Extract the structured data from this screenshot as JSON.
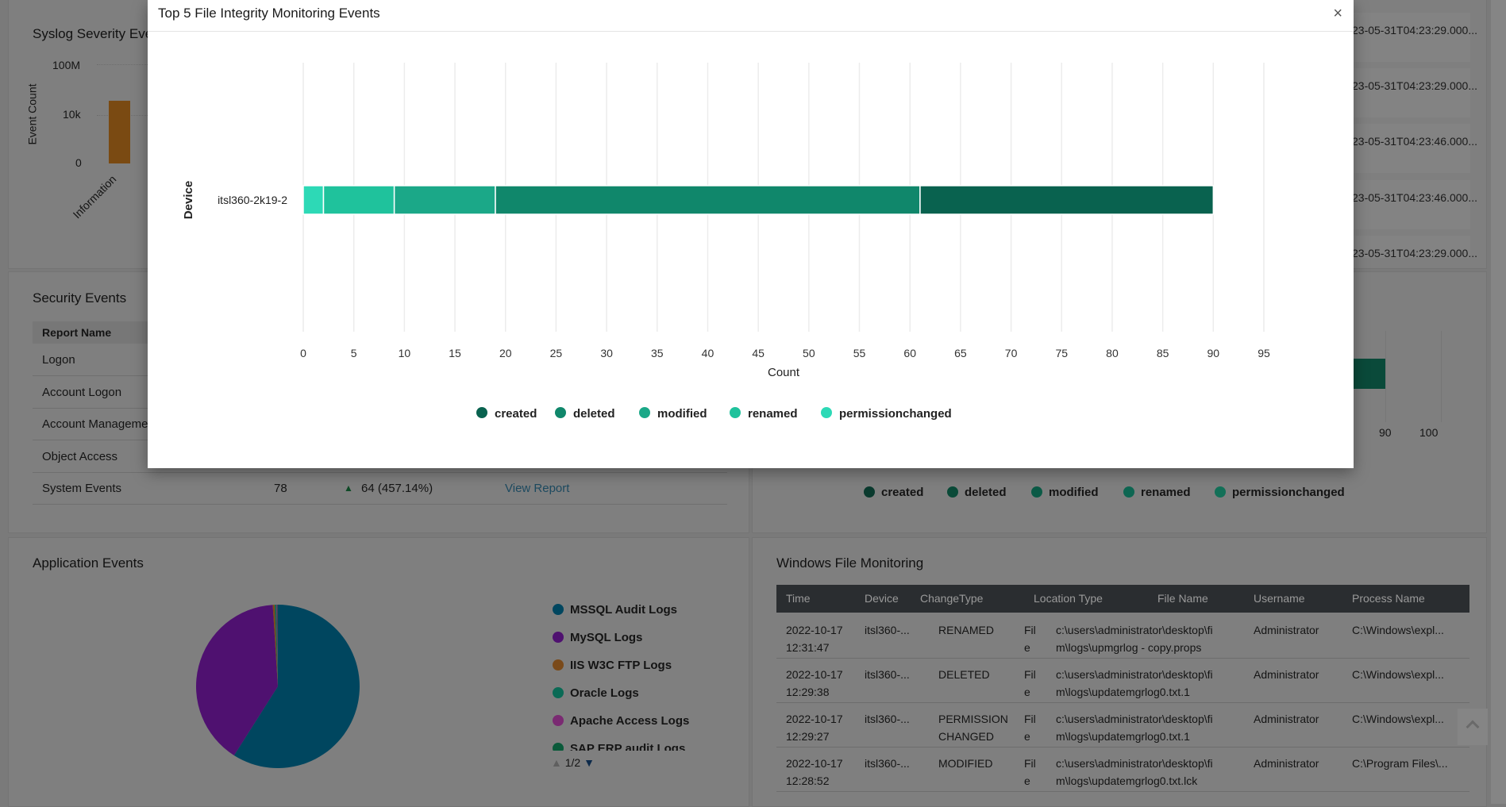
{
  "syslog": {
    "title": "Syslog Severity Eve",
    "y_axis_label": "Event Count",
    "y_ticks": [
      "100M",
      "10k",
      "0"
    ],
    "x_label": "Information",
    "bar_color": "#7a4a12"
  },
  "right_top": {
    "timestamps": [
      "23-05-31T04:23:29.000...",
      "23-05-31T04:23:29.000...",
      "23-05-31T04:23:46.000...",
      "23-05-31T04:23:46.000...",
      "23-05-31T04:23:29.000..."
    ]
  },
  "security": {
    "title": "Security Events",
    "header": "Report Name",
    "rows": [
      "Logon",
      "Account Logon",
      "Account Manageme",
      "Object Access",
      "System Events"
    ],
    "system_events": {
      "count": "78",
      "change": "64 (457.14%)",
      "trend": "up",
      "link": "View Report"
    }
  },
  "right_mid": {
    "ticks": [
      "90",
      "100"
    ],
    "legend": [
      "created",
      "deleted",
      "modified",
      "renamed",
      "permissionchanged"
    ]
  },
  "application": {
    "title": "Application Events",
    "legend": [
      {
        "label": "MSSQL Audit Logs",
        "color": "#00465f"
      },
      {
        "label": "MySQL Logs",
        "color": "#4f1170"
      },
      {
        "label": "IIS W3C FTP Logs",
        "color": "#7a4a1a"
      },
      {
        "label": "Oracle Logs",
        "color": "#0a6a55"
      },
      {
        "label": "Apache Access Logs",
        "color": "#7a2a72"
      },
      {
        "label": "SAP ERP audit Logs",
        "color": "#0a5a3a"
      }
    ],
    "pie_shares": [
      59,
      40,
      0.4,
      0.3,
      0.2,
      0.1
    ],
    "pager": "1/2"
  },
  "wfm": {
    "title": "Windows File Monitoring",
    "columns": [
      "Time",
      "Device",
      "ChangeType",
      "Location Type",
      "File Name",
      "Username",
      "Process Name"
    ],
    "rows": [
      {
        "time": "2022-10-17\n12:31:47",
        "device": "itsl360-...",
        "change": "RENAMED",
        "loc": "Fil\ne",
        "file": "c:\\users\\administrator\\desktop\\fi\nm\\logs\\upmgrlog - copy.props",
        "user": "Administrator",
        "proc": "C:\\Windows\\expl..."
      },
      {
        "time": "2022-10-17\n12:29:38",
        "device": "itsl360-...",
        "change": "DELETED",
        "loc": "Fil\ne",
        "file": "c:\\users\\administrator\\desktop\\fi\nm\\logs\\updatemgrlog0.txt.1",
        "user": "Administrator",
        "proc": "C:\\Windows\\expl..."
      },
      {
        "time": "2022-10-17\n12:29:27",
        "device": "itsl360-...",
        "change": "PERMISSION\nCHANGED",
        "loc": "Fil\ne",
        "file": "c:\\users\\administrator\\desktop\\fi\nm\\logs\\updatemgrlog0.txt.1",
        "user": "Administrator",
        "proc": "C:\\Windows\\expl..."
      },
      {
        "time": "2022-10-17\n12:28:52",
        "device": "itsl360-...",
        "change": "MODIFIED",
        "loc": "Fil\ne",
        "file": "c:\\users\\administrator\\desktop\\fi\nm\\logs\\updatemgrlog0.txt.lck",
        "user": "Administrator",
        "proc": "C:\\Program Files\\..."
      }
    ]
  },
  "modal": {
    "title": "Top 5 File Integrity Monitoring Events",
    "close_label": "×"
  },
  "chart_data": {
    "type": "bar",
    "orientation": "horizontal",
    "stacked": true,
    "title": "Top 5 File Integrity Monitoring Events",
    "xlabel": "Count",
    "ylabel": "Device",
    "categories": [
      "itsl360-2k19-2"
    ],
    "xlim": [
      0,
      95
    ],
    "x_ticks": [
      "0",
      "5",
      "10",
      "15",
      "20",
      "25",
      "30",
      "35",
      "40",
      "45",
      "50",
      "55",
      "60",
      "65",
      "70",
      "75",
      "80",
      "85",
      "90",
      "95"
    ],
    "grid": true,
    "legend_position": "bottom",
    "series": [
      {
        "name": "created",
        "values": [
          29
        ],
        "color": "#09624f"
      },
      {
        "name": "deleted",
        "values": [
          42
        ],
        "color": "#10876b"
      },
      {
        "name": "modified",
        "values": [
          10
        ],
        "color": "#1ba888"
      },
      {
        "name": "renamed",
        "values": [
          7
        ],
        "color": "#1fc29c"
      },
      {
        "name": "permissionchanged",
        "values": [
          2
        ],
        "color": "#2dd9b6"
      }
    ]
  }
}
